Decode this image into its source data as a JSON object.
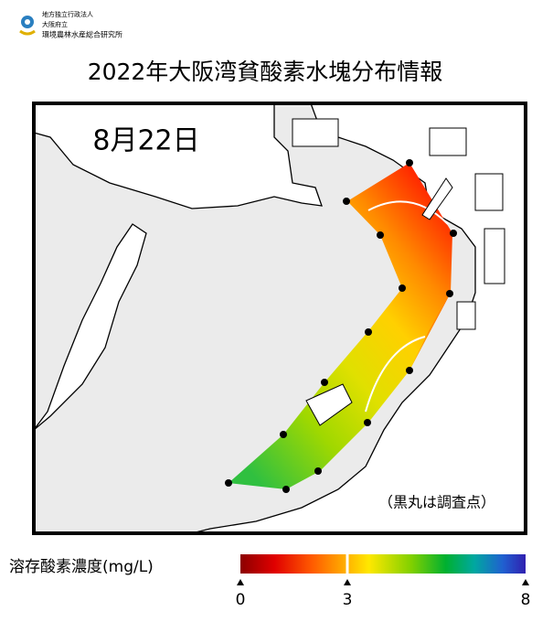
{
  "header": {
    "org": [
      "地方独立行政法人",
      "大阪府立",
      "環境農林水産総合研究所"
    ],
    "title": "2022年大阪湾貧酸素水塊分布情報"
  },
  "map": {
    "date": "8月22日",
    "note": "（黒丸は調査点）"
  },
  "colorbar": {
    "label": "溶存酸素濃度(mg/L)",
    "range": [
      0,
      8
    ],
    "ticks": [
      0,
      3,
      8
    ]
  }
}
